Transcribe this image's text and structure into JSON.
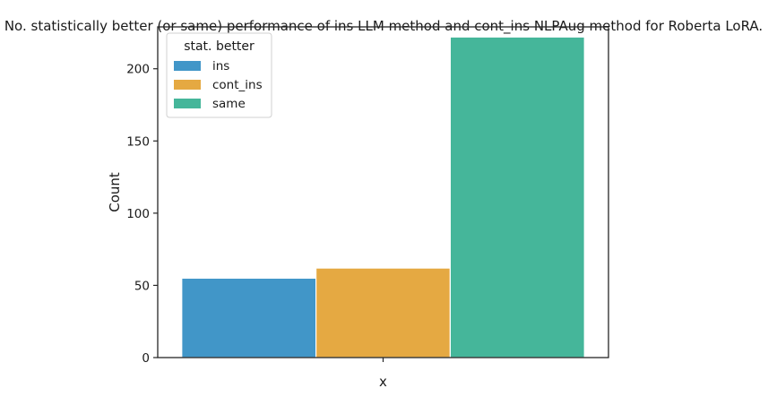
{
  "chart_data": {
    "type": "bar",
    "title": "No. statistically better (or same) performance of ins LLM method and cont_ins NLPAug method for Roberta LoRA.",
    "xlabel": "x",
    "ylabel": "Count",
    "categories": [
      "x"
    ],
    "ylim": [
      0,
      229
    ],
    "yticks": [
      0,
      50,
      100,
      150,
      200
    ],
    "grid": false,
    "legend": {
      "title": "stat. better",
      "position": "top-left"
    },
    "series": [
      {
        "name": "ins",
        "values": [
          55
        ],
        "color": "#4196c8"
      },
      {
        "name": "cont_ins",
        "values": [
          62
        ],
        "color": "#e5a942"
      },
      {
        "name": "same",
        "values": [
          222
        ],
        "color": "#45b69a"
      }
    ]
  }
}
